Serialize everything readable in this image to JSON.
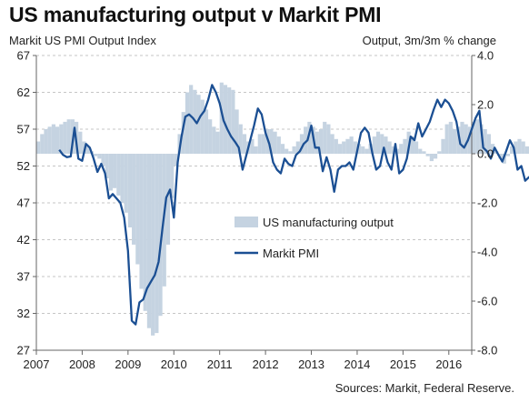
{
  "title": "US manufacturing output v Markit PMI",
  "left_axis_title": "Markit US PMI Output Index",
  "right_axis_title": "Output, 3m/3m % change",
  "source": "Sources: Markit, Federal Reserve.",
  "colors": {
    "bar": "#c5d3e1",
    "line": "#1b4f93",
    "grid": "#b3b3b3",
    "axis": "#666666"
  },
  "chart_data": {
    "type": "bar+line",
    "title": "US manufacturing output v Markit PMI",
    "left_axis": {
      "label": "Markit US PMI Output Index",
      "ylim": [
        27,
        67
      ],
      "ticks": [
        27,
        32,
        37,
        42,
        47,
        52,
        57,
        62,
        67
      ]
    },
    "right_axis": {
      "label": "Output, 3m/3m % change",
      "ylim": [
        -8,
        4
      ],
      "ticks": [
        "-8.0",
        "-6.0",
        "-4.0",
        "-2.0",
        "0.0",
        "2.0",
        "4.0"
      ]
    },
    "x_axis": {
      "ticks": [
        "2007",
        "2008",
        "2009",
        "2010",
        "2011",
        "2012",
        "2013",
        "2014",
        "2015",
        "2016"
      ],
      "range": [
        2007.0,
        2016.5
      ]
    },
    "grid": "horizontal dashed",
    "legend": {
      "position": "center-right"
    },
    "series": [
      {
        "name": "US manufacturing output",
        "type": "bar",
        "axis": "right",
        "x_start": 2007.0,
        "x_step": 0.08333,
        "values": [
          0.5,
          0.8,
          1.0,
          1.1,
          1.2,
          1.1,
          1.2,
          1.3,
          1.4,
          1.4,
          1.3,
          0.9,
          0.5,
          0.3,
          0.1,
          -0.1,
          -0.2,
          -0.5,
          -1.0,
          -1.5,
          -1.4,
          -1.7,
          -2.0,
          -2.4,
          -3.0,
          -3.7,
          -4.5,
          -5.5,
          -6.4,
          -7.1,
          -7.4,
          -7.3,
          -6.6,
          -5.4,
          -3.7,
          -1.8,
          -0.5,
          0.8,
          1.7,
          2.5,
          2.8,
          2.6,
          2.4,
          2.2,
          1.8,
          1.4,
          1.1,
          0.9,
          2.9,
          2.8,
          2.7,
          2.6,
          1.8,
          1.2,
          0.8,
          0.5,
          0.6,
          0.3,
          0.8,
          0.8,
          1.0,
          1.0,
          0.9,
          0.7,
          0.4,
          0.2,
          0.1,
          0.3,
          0.5,
          0.8,
          1.1,
          1.3,
          1.1,
          0.9,
          1.0,
          1.3,
          1.2,
          0.8,
          0.6,
          0.4,
          0.5,
          0.6,
          0.7,
          0.5,
          0.4,
          0.3,
          0.2,
          0.4,
          0.7,
          0.9,
          0.8,
          0.7,
          0.5,
          0.3,
          0.2,
          0.4,
          0.6,
          0.9,
          0.7,
          0.5,
          0.2,
          0.1,
          -0.1,
          -0.3,
          -0.2,
          0.1,
          0.6,
          1.2,
          1.3,
          1.0,
          1.1,
          1.3,
          1.2,
          1.1,
          1.3,
          1.4,
          1.2,
          1.0,
          0.8,
          0.4,
          0.1,
          -0.2,
          -0.4,
          -0.1,
          0.3,
          0.5,
          0.6,
          0.5,
          0.3,
          0.1,
          0.0,
          -0.1,
          -0.1,
          0.1,
          0.1,
          0.2,
          0.2,
          0.1
        ]
      },
      {
        "name": "Markit PMI",
        "type": "line",
        "axis": "left",
        "x_start": 2007.5,
        "x_step": 0.08333,
        "values": [
          54.2,
          53.5,
          53.2,
          53.3,
          57.2,
          53.0,
          52.7,
          55.0,
          54.5,
          53.0,
          51.2,
          52.3,
          51.0,
          47.6,
          48.2,
          47.6,
          47.0,
          45.0,
          40.5,
          31.0,
          30.5,
          33.5,
          33.9,
          35.4,
          36.3,
          37.2,
          39.0,
          43.5,
          47.7,
          48.8,
          45.0,
          52.5,
          56.0,
          58.7,
          59.0,
          58.5,
          57.8,
          58.8,
          59.5,
          61.0,
          63.0,
          62.0,
          60.5,
          58.2,
          57.0,
          56.0,
          55.3,
          54.5,
          51.5,
          53.5,
          55.5,
          57.5,
          59.8,
          59.0,
          56.5,
          55.0,
          52.5,
          51.5,
          51.0,
          53.0,
          52.3,
          52.0,
          53.5,
          54.0,
          55.0,
          55.5,
          57.5,
          54.5,
          54.5,
          51.3,
          53.2,
          51.5,
          48.5,
          51.5,
          52.0,
          52.0,
          52.5,
          51.5,
          54.0,
          56.5,
          57.2,
          56.5,
          53.7,
          51.5,
          52.0,
          54.5,
          52.5,
          51.5,
          55.0,
          51.0,
          51.5,
          53.0,
          56.0,
          55.5,
          57.8,
          56.0,
          57.0,
          58.0,
          59.6,
          61.0,
          60.0,
          61.0,
          60.5,
          59.5,
          58.0,
          55.0,
          54.5,
          55.5,
          57.0,
          58.5,
          59.5,
          54.5,
          54.0,
          53.0,
          54.5,
          53.5,
          52.6,
          54.0,
          55.5,
          54.5,
          51.5,
          52.0,
          50.0,
          50.5,
          50.4,
          49.5,
          48.0
        ]
      }
    ]
  }
}
